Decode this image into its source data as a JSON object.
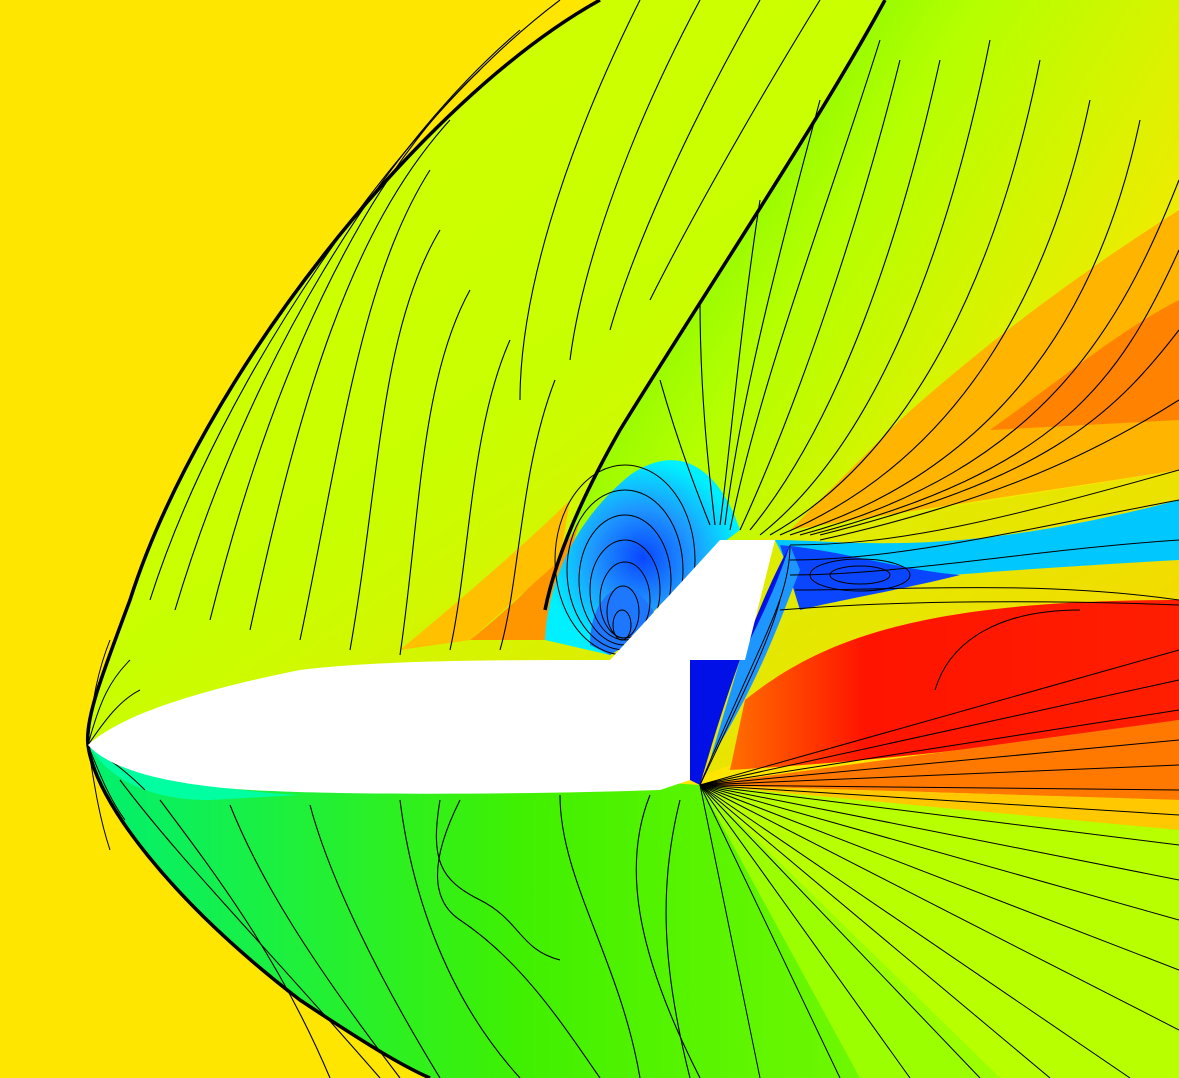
{
  "figure": {
    "colors": {
      "freestream": "#ffe600",
      "yellow_green": "#d4ff00",
      "lime": "#9cff00",
      "green": "#3cf000",
      "bright_green": "#00f23a",
      "aqua_green": "#00ffa0",
      "cyan": "#00f0ff",
      "light_blue": "#1e96ff",
      "blue": "#0a46ff",
      "deep_blue": "#0010e6",
      "orange": "#ffa000",
      "dark_orange": "#ff6e00",
      "red": "#ff1400",
      "body": "#ffffff",
      "contour_line": "#000000"
    }
  }
}
